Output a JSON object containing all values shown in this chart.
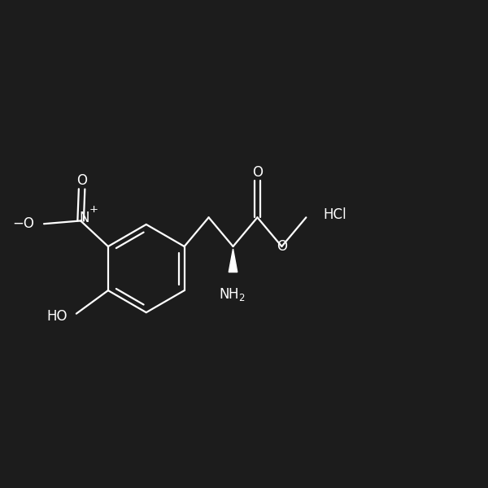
{
  "background_color": "#1c1c1c",
  "line_color": "#ffffff",
  "text_color": "#ffffff",
  "line_width": 1.6,
  "font_size": 11.5,
  "fig_size": [
    6.0,
    6.0
  ],
  "dpi": 100,
  "xlim": [
    0,
    7.8
  ],
  "ylim": [
    1.5,
    5.8
  ]
}
